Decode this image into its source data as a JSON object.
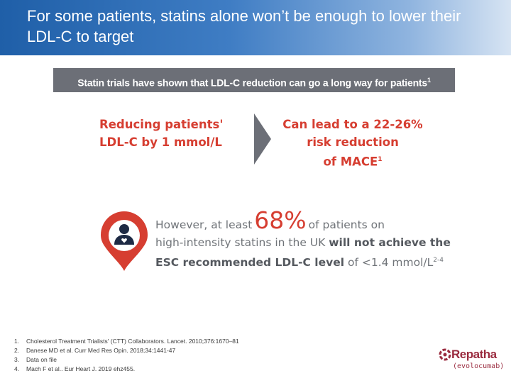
{
  "header": {
    "title": "For some patients, statins alone won’t be enough to lower their  LDL-C to target"
  },
  "banner": {
    "text": "Statin trials have shown that LDL-C reduction can go a long way for patients",
    "ref": "1"
  },
  "claim_left": {
    "line1": "Reducing patients'",
    "line2": "LDL-C by 1 mmol/L"
  },
  "claim_right": {
    "line1": "Can lead to a 22-26%",
    "line2": "risk reduction",
    "line3": "of MACE",
    "ref": "1"
  },
  "stat": {
    "pre": "However, at least",
    "pct": "68%",
    "post": "of patients on",
    "line2_normal": "high-intensity statins in the UK ",
    "line2_bold": "will not achieve the",
    "line3_bold": "ESC recommended LDL-C level",
    "line3_normal": " of <1.4 mmol/L",
    "ref": "2-4"
  },
  "references": [
    {
      "num": "1.",
      "text": "Cholesterol Treatment Trialists' (CTT) Collaborators. Lancet. 2010;376:1670–81"
    },
    {
      "num": "2.",
      "text": "Danese MD et al. Curr Med Res Opin. 2018;34:1441-47"
    },
    {
      "num": "3.",
      "text": "Data on file"
    },
    {
      "num": "4.",
      "text": "Mach F et al.. Eur Heart J. 2019 ehz455."
    }
  ],
  "logo": {
    "name": "Repatha",
    "sub": "(evolocumab)"
  },
  "colors": {
    "accent_red": "#d63e31",
    "banner_grey": "#6c6f77",
    "header_blue": "#1f5fa8",
    "brand": "#9a2b3f"
  }
}
